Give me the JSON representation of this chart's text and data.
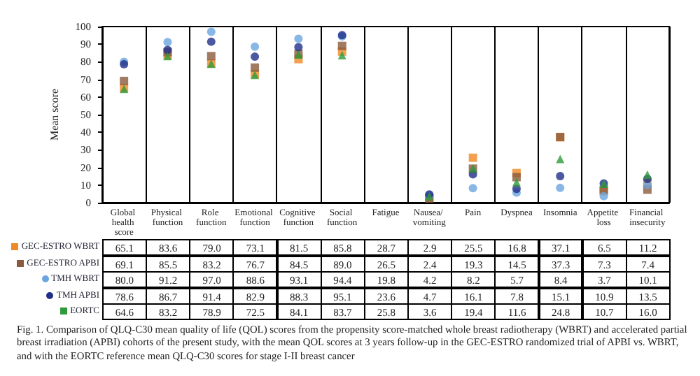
{
  "chart_data": {
    "type": "scatter",
    "ylabel": "Mean score",
    "ylim": [
      0,
      100
    ],
    "yticks": [
      0,
      10,
      20,
      30,
      40,
      50,
      60,
      70,
      80,
      90,
      100
    ],
    "grid": false,
    "legend": "bottom left",
    "categories": [
      "Global health score",
      "Physical function",
      "Role function",
      "Emotional function",
      "Cognitive function",
      "Social function",
      "Fatigue",
      "Nausea/ vomiting",
      "Pain",
      "Dyspnea",
      "Insomnia",
      "Appetite loss",
      "Financial insecurity"
    ],
    "series": [
      {
        "name": "GEC-ESTRO WBRT",
        "color": "#f08a24",
        "marker": "square",
        "values": [
          65.1,
          83.6,
          79.0,
          73.1,
          81.5,
          85.8,
          null,
          2.9,
          25.5,
          16.8,
          37.1,
          6.5,
          11.2
        ],
        "value_labels": [
          "65.1",
          "83.6",
          "79.0",
          "73.1",
          "81.5",
          "85.8",
          "28.7",
          "2.9",
          "25.5",
          "16.8",
          "37.1",
          "6.5",
          "11.2"
        ]
      },
      {
        "name": "GEC-ESTRO APBI",
        "color": "#8b5a3c",
        "marker": "square",
        "values": [
          69.1,
          85.5,
          83.2,
          76.7,
          84.5,
          89.0,
          null,
          2.4,
          19.3,
          14.5,
          37.3,
          7.3,
          7.4
        ],
        "value_labels": [
          "69.1",
          "85.5",
          "83.2",
          "76.7",
          "84.5",
          "89.0",
          "26.5",
          "2.4",
          "19.3",
          "14.5",
          "37.3",
          "7.3",
          "7.4"
        ]
      },
      {
        "name": "TMH WBRT",
        "color": "#6aa5e0",
        "marker": "circle",
        "values": [
          80.0,
          91.2,
          97.0,
          88.6,
          93.1,
          94.4,
          null,
          4.2,
          8.2,
          5.7,
          8.4,
          3.7,
          10.1
        ],
        "value_labels": [
          "80.0",
          "91.2",
          "97.0",
          "88.6",
          "93.1",
          "94.4",
          "19.8",
          "4.2",
          "8.2",
          "5.7",
          "8.4",
          "3.7",
          "10.1"
        ]
      },
      {
        "name": "TMH APBI",
        "color": "#1f2f8a",
        "marker": "circle",
        "values": [
          78.6,
          86.7,
          91.4,
          82.9,
          88.3,
          95.1,
          null,
          4.7,
          16.1,
          7.8,
          15.1,
          10.9,
          13.5
        ],
        "value_labels": [
          "78.6",
          "86.7",
          "91.4",
          "82.9",
          "88.3",
          "95.1",
          "23.6",
          "4.7",
          "16.1",
          "7.8",
          "15.1",
          "10.9",
          "13.5"
        ]
      },
      {
        "name": "EORTC",
        "color": "#2e9a3a",
        "marker": "triangle",
        "values": [
          64.6,
          83.2,
          78.9,
          72.5,
          84.1,
          83.7,
          null,
          3.6,
          19.4,
          11.6,
          24.8,
          10.7,
          16.0
        ],
        "value_labels": [
          "64.6",
          "83.2",
          "78.9",
          "72.5",
          "84.1",
          "83.7",
          "25.8",
          "3.6",
          "19.4",
          "11.6",
          "24.8",
          "10.7",
          "16.0"
        ]
      }
    ],
    "annotations": [
      "Fig. 1. Comparison of QLQ-C30 mean quality of life (QOL) scores from the propensity score-matched whole breast radiotherapy (WBRT) and accelerated partial breast irradiation (APBI) cohorts of the present study, with the mean QOL scores at 3 years follow-up in the GEC-ESTRO randomized trial of APBI vs. WBRT, and with the EORTC reference mean QLQ-C30 scores for stage I-II breast cancer"
    ]
  }
}
